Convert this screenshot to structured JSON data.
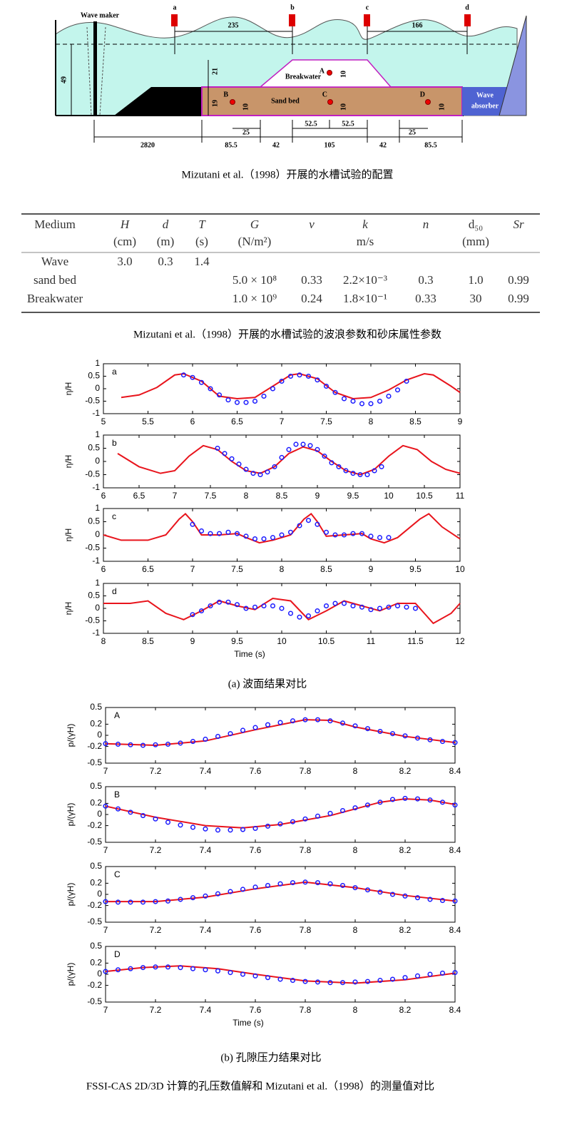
{
  "diagram": {
    "wave_maker": "Wave maker",
    "gauges": [
      "a",
      "b",
      "c",
      "d"
    ],
    "breakwater": "Breakwater",
    "sand_bed": "Sand bed",
    "points": [
      "A",
      "B",
      "C",
      "D"
    ],
    "wave_absorber": [
      "Wave",
      "absorber"
    ],
    "dimensions": [
      "235",
      "166",
      "49",
      "21",
      "19",
      "10",
      "10",
      "10",
      "10",
      "2820",
      "85.5",
      "42",
      "105",
      "42",
      "85.5",
      "25",
      "52.5",
      "52.5",
      "25"
    ]
  },
  "table": {
    "header": [
      "Medium",
      "H",
      "d",
      "T",
      "G",
      "ν",
      "k",
      "n",
      "d₅₀",
      "Sr"
    ],
    "units": [
      null,
      "(cm)",
      "(m)",
      "(s)",
      "(N/m²)",
      null,
      "m/s",
      null,
      "(mm)",
      null
    ],
    "rows": [
      [
        "Wave",
        "3.0",
        "0.3",
        "1.4",
        null,
        null,
        null,
        null,
        null,
        null
      ],
      [
        "sand bed",
        null,
        null,
        null,
        "5.0 × 10⁸",
        "0.33",
        "2.2×10⁻³",
        "0.3",
        "1.0",
        "0.99"
      ],
      [
        "Breakwater",
        null,
        null,
        null,
        "1.0 × 10⁹",
        "0.24",
        "1.8×10⁻¹",
        "0.33",
        "30",
        "0.99"
      ]
    ]
  },
  "captions": [
    "Mizutani et al.（1998）开展的水槽试验的配置",
    "Mizutani et al.（1998）开展的水槽试验的波浪参数和砂床属性参数",
    "(a) 波面结果对比",
    "(b) 孔隙压力结果对比",
    "FSSI-CAS 2D/3D 计算的孔压数值解和 Mizutani et al.（1998）的测量值对比"
  ],
  "chart_data": [
    {
      "type": "line",
      "panel_label": "a",
      "ylabel": "η/H",
      "xlim": [
        5,
        9
      ],
      "xticks": [
        5,
        5.5,
        6,
        6.5,
        7,
        7.5,
        8,
        8.5,
        9
      ],
      "ylim": [
        -1,
        1
      ],
      "yticks": [
        -1,
        -0.5,
        0,
        0.5,
        1
      ],
      "series": [
        {
          "mode": "line",
          "color": "#e8141c",
          "x": [
            5.2,
            5.4,
            5.6,
            5.8,
            5.9,
            6.1,
            6.3,
            6.5,
            6.7,
            6.9,
            7.1,
            7.2,
            7.4,
            7.6,
            7.8,
            8.0,
            8.2,
            8.4,
            8.6,
            8.7,
            8.9,
            9.0
          ],
          "values": [
            -0.35,
            -0.25,
            0.05,
            0.55,
            0.6,
            0.3,
            -0.3,
            -0.4,
            -0.35,
            0.1,
            0.55,
            0.6,
            0.4,
            -0.15,
            -0.4,
            -0.35,
            -0.05,
            0.35,
            0.6,
            0.55,
            0.1,
            -0.15
          ]
        },
        {
          "mode": "markers",
          "color": "#1a1aff",
          "x": [
            5.9,
            6.0,
            6.1,
            6.2,
            6.3,
            6.4,
            6.5,
            6.6,
            6.7,
            6.8,
            6.9,
            7.0,
            7.1,
            7.2,
            7.3,
            7.4,
            7.5,
            7.6,
            7.7,
            7.8,
            7.9,
            8.0,
            8.1,
            8.2,
            8.3,
            8.4
          ],
          "values": [
            0.55,
            0.45,
            0.25,
            0,
            -0.25,
            -0.45,
            -0.55,
            -0.55,
            -0.5,
            -0.3,
            0,
            0.3,
            0.5,
            0.55,
            0.5,
            0.35,
            0.1,
            -0.15,
            -0.4,
            -0.5,
            -0.6,
            -0.6,
            -0.5,
            -0.3,
            -0.05,
            0.3
          ]
        }
      ]
    },
    {
      "type": "line",
      "panel_label": "b",
      "ylabel": "η/H",
      "xlim": [
        6,
        11
      ],
      "xticks": [
        6,
        6.5,
        7,
        7.5,
        8,
        8.5,
        9,
        9.5,
        10,
        10.5,
        11
      ],
      "ylim": [
        -1,
        1
      ],
      "yticks": [
        -1,
        -0.5,
        0,
        0.5,
        1
      ],
      "series": [
        {
          "mode": "line",
          "color": "#e8141c",
          "x": [
            6.2,
            6.5,
            6.8,
            7.0,
            7.2,
            7.4,
            7.6,
            7.8,
            8.0,
            8.2,
            8.4,
            8.6,
            8.8,
            9.0,
            9.2,
            9.4,
            9.6,
            9.8,
            10.0,
            10.2,
            10.4,
            10.6,
            10.8,
            11.0
          ],
          "values": [
            0.3,
            -0.2,
            -0.45,
            -0.35,
            0.2,
            0.6,
            0.45,
            0,
            -0.35,
            -0.45,
            -0.2,
            0.3,
            0.55,
            0.4,
            0,
            -0.35,
            -0.5,
            -0.3,
            0.2,
            0.6,
            0.45,
            0,
            -0.3,
            -0.45
          ]
        },
        {
          "mode": "markers",
          "color": "#1a1aff",
          "x": [
            7.6,
            7.7,
            7.8,
            7.9,
            8.0,
            8.1,
            8.2,
            8.3,
            8.4,
            8.5,
            8.6,
            8.7,
            8.8,
            8.9,
            9.0,
            9.1,
            9.2,
            9.3,
            9.4,
            9.5,
            9.6,
            9.7,
            9.8,
            9.9
          ],
          "values": [
            0.5,
            0.3,
            0.1,
            -0.1,
            -0.3,
            -0.45,
            -0.5,
            -0.4,
            -0.2,
            0.15,
            0.45,
            0.65,
            0.65,
            0.6,
            0.45,
            0.2,
            -0.05,
            -0.2,
            -0.35,
            -0.45,
            -0.5,
            -0.5,
            -0.35,
            -0.2
          ]
        }
      ]
    },
    {
      "type": "line",
      "panel_label": "c",
      "ylabel": "η/H",
      "xlim": [
        6,
        10
      ],
      "xticks": [
        6,
        6.5,
        7,
        7.5,
        8,
        8.5,
        9,
        9.5,
        10
      ],
      "ylim": [
        -1,
        1
      ],
      "yticks": [
        -1,
        -0.5,
        0,
        0.5,
        1
      ],
      "series": [
        {
          "mode": "line",
          "color": "#e8141c",
          "x": [
            6.0,
            6.2,
            6.5,
            6.7,
            6.85,
            6.92,
            7.0,
            7.1,
            7.3,
            7.5,
            7.6,
            7.75,
            7.9,
            8.1,
            8.25,
            8.33,
            8.4,
            8.5,
            8.7,
            8.9,
            9.0,
            9.15,
            9.3,
            9.55,
            9.65,
            9.8,
            10.0
          ],
          "values": [
            0,
            -0.2,
            -0.2,
            0,
            0.6,
            0.8,
            0.5,
            0,
            0,
            0.05,
            -0.1,
            -0.3,
            -0.2,
            0,
            0.6,
            0.8,
            0.5,
            -0.05,
            0,
            0.05,
            -0.15,
            -0.3,
            -0.1,
            0.6,
            0.8,
            0.3,
            -0.15
          ]
        },
        {
          "mode": "markers",
          "color": "#1a1aff",
          "x": [
            7.0,
            7.1,
            7.2,
            7.3,
            7.4,
            7.5,
            7.6,
            7.7,
            7.8,
            7.9,
            8.0,
            8.1,
            8.2,
            8.3,
            8.4,
            8.5,
            8.6,
            8.7,
            8.8,
            8.9,
            9.0,
            9.1,
            9.2
          ],
          "values": [
            0.4,
            0.15,
            0.05,
            0.05,
            0.1,
            0.05,
            -0.05,
            -0.15,
            -0.15,
            -0.1,
            0,
            0.1,
            0.35,
            0.55,
            0.4,
            0.1,
            0,
            0,
            0.05,
            0.05,
            -0.05,
            -0.1,
            -0.1
          ]
        }
      ]
    },
    {
      "type": "line",
      "panel_label": "d",
      "ylabel": "η/H",
      "xlabel": "Time  (s)",
      "xlim": [
        8,
        12
      ],
      "xticks": [
        8,
        8.5,
        9,
        9.5,
        10,
        10.5,
        11,
        11.5,
        12
      ],
      "ylim": [
        -1,
        1
      ],
      "yticks": [
        -1,
        -0.5,
        0,
        0.5,
        1
      ],
      "series": [
        {
          "mode": "line",
          "color": "#e8141c",
          "x": [
            8.0,
            8.3,
            8.5,
            8.7,
            8.9,
            9.1,
            9.3,
            9.5,
            9.7,
            9.9,
            10.1,
            10.3,
            10.5,
            10.7,
            10.9,
            11.1,
            11.3,
            11.5,
            11.7,
            11.9,
            12.0
          ],
          "values": [
            0.2,
            0.2,
            0.3,
            -0.2,
            -0.45,
            -0.1,
            0.3,
            0.1,
            -0.05,
            0.4,
            0.3,
            -0.45,
            -0.1,
            0.3,
            0.1,
            -0.1,
            0.2,
            0.2,
            -0.6,
            -0.2,
            0.2
          ]
        },
        {
          "mode": "markers",
          "color": "#1a1aff",
          "x": [
            9.0,
            9.1,
            9.2,
            9.3,
            9.4,
            9.5,
            9.6,
            9.7,
            9.8,
            9.9,
            10.0,
            10.1,
            10.2,
            10.3,
            10.4,
            10.5,
            10.6,
            10.7,
            10.8,
            10.9,
            11.0,
            11.1,
            11.2,
            11.3,
            11.4,
            11.5
          ],
          "values": [
            -0.25,
            -0.1,
            0.1,
            0.25,
            0.25,
            0.15,
            0,
            0.05,
            0.1,
            0.1,
            0,
            -0.2,
            -0.35,
            -0.3,
            -0.1,
            0.1,
            0.2,
            0.2,
            0.1,
            0.05,
            -0.05,
            0,
            0.05,
            0.1,
            0.05,
            0
          ]
        }
      ]
    },
    {
      "type": "line",
      "panel_label": "A",
      "ylabel": "p/(γH)",
      "xlim": [
        7,
        8.4
      ],
      "xticks": [
        7,
        7.2,
        7.4,
        7.6,
        7.8,
        8,
        8.2,
        8.4
      ],
      "ylim": [
        -0.5,
        0.5
      ],
      "yticks": [
        -0.5,
        -0.2,
        0,
        0.2,
        0.5
      ],
      "series": [
        {
          "mode": "line",
          "color": "#e8141c",
          "x": [
            7.0,
            7.2,
            7.4,
            7.6,
            7.8,
            7.9,
            8.0,
            8.2,
            8.4
          ],
          "values": [
            -0.15,
            -0.18,
            -0.1,
            0.1,
            0.28,
            0.27,
            0.15,
            -0.02,
            -0.13
          ]
        },
        {
          "mode": "markers",
          "color": "#1a1aff",
          "x": [
            7.0,
            7.05,
            7.1,
            7.15,
            7.2,
            7.25,
            7.3,
            7.35,
            7.4,
            7.45,
            7.5,
            7.55,
            7.6,
            7.65,
            7.7,
            7.75,
            7.8,
            7.85,
            7.9,
            7.95,
            8.0,
            8.05,
            8.1,
            8.15,
            8.2,
            8.25,
            8.3,
            8.35,
            8.4
          ],
          "values": [
            -0.15,
            -0.16,
            -0.17,
            -0.18,
            -0.17,
            -0.16,
            -0.14,
            -0.11,
            -0.07,
            -0.02,
            0.03,
            0.09,
            0.14,
            0.19,
            0.23,
            0.26,
            0.28,
            0.28,
            0.26,
            0.22,
            0.17,
            0.12,
            0.07,
            0.03,
            -0.01,
            -0.05,
            -0.08,
            -0.11,
            -0.13
          ]
        }
      ]
    },
    {
      "type": "line",
      "panel_label": "B",
      "ylabel": "p/(γH)",
      "xlim": [
        7,
        8.4
      ],
      "xticks": [
        7,
        7.2,
        7.4,
        7.6,
        7.8,
        8,
        8.2,
        8.4
      ],
      "ylim": [
        -0.5,
        0.5
      ],
      "yticks": [
        -0.5,
        -0.2,
        0,
        0.2,
        0.5
      ],
      "series": [
        {
          "mode": "line",
          "color": "#e8141c",
          "x": [
            7.0,
            7.2,
            7.4,
            7.55,
            7.7,
            7.9,
            8.1,
            8.2,
            8.3,
            8.4
          ],
          "values": [
            0.15,
            -0.05,
            -0.2,
            -0.24,
            -0.18,
            -0.02,
            0.22,
            0.28,
            0.26,
            0.18
          ]
        },
        {
          "mode": "markers",
          "color": "#1a1aff",
          "x": [
            7.0,
            7.05,
            7.1,
            7.15,
            7.2,
            7.25,
            7.3,
            7.35,
            7.4,
            7.45,
            7.5,
            7.55,
            7.6,
            7.65,
            7.7,
            7.75,
            7.8,
            7.85,
            7.9,
            7.95,
            8.0,
            8.05,
            8.1,
            8.15,
            8.2,
            8.25,
            8.3,
            8.35,
            8.4
          ],
          "values": [
            0.15,
            0.1,
            0.04,
            -0.02,
            -0.08,
            -0.14,
            -0.19,
            -0.23,
            -0.26,
            -0.28,
            -0.28,
            -0.27,
            -0.25,
            -0.21,
            -0.17,
            -0.13,
            -0.08,
            -0.03,
            0.02,
            0.07,
            0.12,
            0.17,
            0.22,
            0.27,
            0.29,
            0.28,
            0.26,
            0.22,
            0.17
          ]
        }
      ]
    },
    {
      "type": "line",
      "panel_label": "C",
      "ylabel": "p/(γH)",
      "xlim": [
        7,
        8.4
      ],
      "xticks": [
        7,
        7.2,
        7.4,
        7.6,
        7.8,
        8,
        8.2,
        8.4
      ],
      "ylim": [
        -0.5,
        0.5
      ],
      "yticks": [
        -0.5,
        -0.2,
        0,
        0.2,
        0.5
      ],
      "series": [
        {
          "mode": "line",
          "color": "#e8141c",
          "x": [
            7.0,
            7.2,
            7.4,
            7.6,
            7.8,
            8.0,
            8.2,
            8.4
          ],
          "values": [
            -0.13,
            -0.13,
            -0.05,
            0.1,
            0.22,
            0.12,
            -0.02,
            -0.12
          ]
        },
        {
          "mode": "markers",
          "color": "#1a1aff",
          "x": [
            7.0,
            7.05,
            7.1,
            7.15,
            7.2,
            7.25,
            7.3,
            7.35,
            7.4,
            7.45,
            7.5,
            7.55,
            7.6,
            7.65,
            7.7,
            7.75,
            7.8,
            7.85,
            7.9,
            7.95,
            8.0,
            8.05,
            8.1,
            8.15,
            8.2,
            8.25,
            8.3,
            8.35,
            8.4
          ],
          "values": [
            -0.13,
            -0.14,
            -0.14,
            -0.14,
            -0.13,
            -0.12,
            -0.09,
            -0.06,
            -0.03,
            0.01,
            0.05,
            0.09,
            0.13,
            0.16,
            0.19,
            0.21,
            0.22,
            0.21,
            0.19,
            0.16,
            0.12,
            0.08,
            0.04,
            0,
            -0.03,
            -0.06,
            -0.09,
            -0.11,
            -0.12
          ]
        }
      ]
    },
    {
      "type": "line",
      "panel_label": "D",
      "ylabel": "p/(γH)",
      "xlabel": "Time  (s)",
      "xlim": [
        7,
        8.4
      ],
      "xticks": [
        7,
        7.2,
        7.4,
        7.6,
        7.8,
        8,
        8.2,
        8.4
      ],
      "ylim": [
        -0.5,
        0.5
      ],
      "yticks": [
        -0.5,
        -0.2,
        0,
        0.2,
        0.5
      ],
      "series": [
        {
          "mode": "line",
          "color": "#e8141c",
          "x": [
            7.0,
            7.15,
            7.3,
            7.45,
            7.6,
            7.8,
            8.0,
            8.2,
            8.4
          ],
          "values": [
            0.05,
            0.12,
            0.15,
            0.1,
            0,
            -0.12,
            -0.16,
            -0.1,
            0.02
          ]
        },
        {
          "mode": "markers",
          "color": "#1a1aff",
          "x": [
            7.0,
            7.05,
            7.1,
            7.15,
            7.2,
            7.25,
            7.3,
            7.35,
            7.4,
            7.45,
            7.5,
            7.55,
            7.6,
            7.65,
            7.7,
            7.75,
            7.8,
            7.85,
            7.9,
            7.95,
            8.0,
            8.05,
            8.1,
            8.15,
            8.2,
            8.25,
            8.3,
            8.35,
            8.4
          ],
          "values": [
            0.05,
            0.08,
            0.1,
            0.12,
            0.13,
            0.13,
            0.12,
            0.1,
            0.08,
            0.06,
            0.03,
            0,
            -0.03,
            -0.06,
            -0.09,
            -0.11,
            -0.13,
            -0.14,
            -0.15,
            -0.15,
            -0.14,
            -0.13,
            -0.11,
            -0.09,
            -0.06,
            -0.03,
            0,
            0.02,
            0.03
          ]
        }
      ]
    }
  ]
}
